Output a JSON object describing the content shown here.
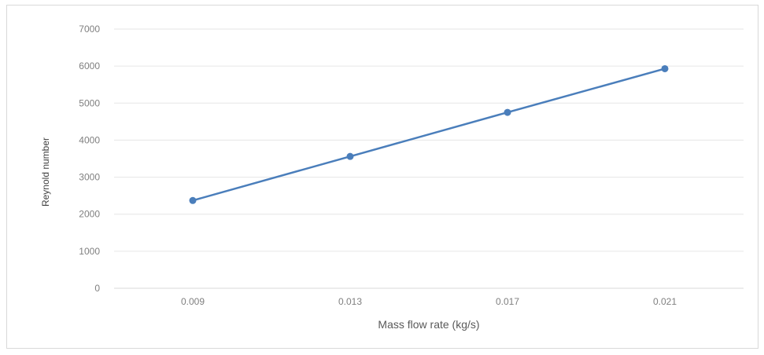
{
  "chart_data": {
    "type": "line",
    "title": "",
    "xlabel": "Mass flow rate (kg/s)",
    "ylabel": "Reynold number",
    "categories": [
      "0.009",
      "0.013",
      "0.017",
      "0.021"
    ],
    "series": [
      {
        "values": [
          2370,
          3560,
          4750,
          5930
        ]
      }
    ],
    "ylim": [
      0,
      7000
    ],
    "yticks": [
      "0",
      "1000",
      "2000",
      "3000",
      "4000",
      "5000",
      "6000",
      "7000"
    ],
    "grid": true,
    "legend": "none",
    "colors": {
      "line": "#4a7ebb",
      "grid": "#e6e6e6",
      "axis": "#d9d9d9"
    }
  }
}
